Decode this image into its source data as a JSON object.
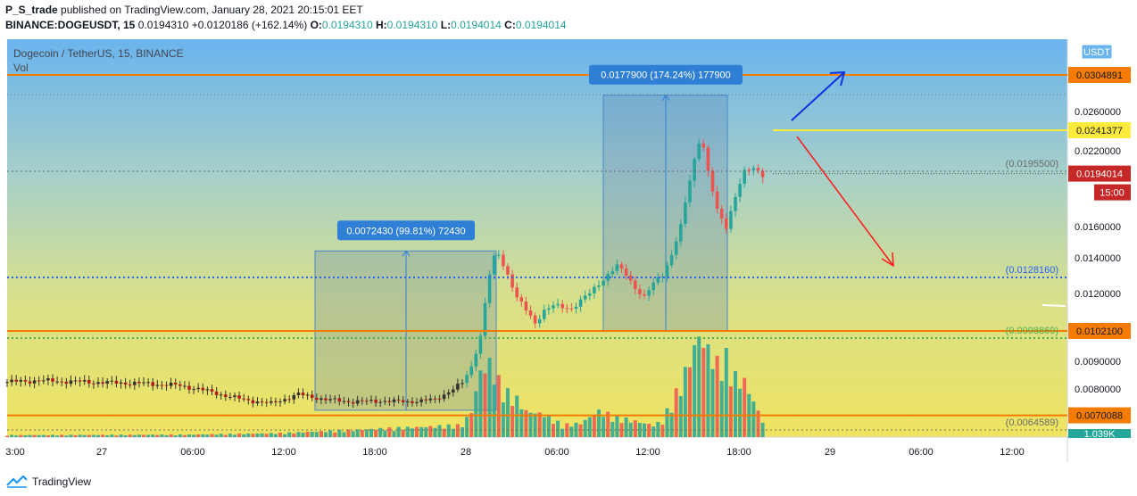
{
  "header": {
    "author": "P_S_trade",
    "published": "published on TradingView.com, January 28, 2021 20:15:01 EET",
    "symbol": "BINANCE:DOGEUSDT, 15",
    "last": "0.0194310",
    "change": "+0.0120186 (+162.14%)",
    "o_label": "O:",
    "o_val": "0.0194310",
    "h_label": "H:",
    "h_val": "0.0194310",
    "l_label": "L:",
    "l_val": "0.0194014",
    "c_label": "C:",
    "c_val": "0.0194014"
  },
  "legend": {
    "title": "Dogecoin / TetherUS, 15, BINANCE",
    "vol": "Vol"
  },
  "footer": {
    "brand": "TradingView"
  },
  "colors": {
    "up": "#26a69a",
    "down": "#ef5350",
    "orange": "#f57c00",
    "yellow": "#ffeb3b",
    "blue_dot": "#2962ff",
    "green_dot": "#4caf50"
  },
  "chart_data": {
    "type": "candlestick",
    "currency": "USDT",
    "ylim": [
      0.0062,
      0.0322
    ],
    "y_ticks": [
      "0.0260000",
      "0.0220000",
      "0.0160000",
      "0.0140000",
      "0.0120000",
      "0.0090000",
      "0.0080000"
    ],
    "x_ticks": [
      "3:00",
      "27",
      "06:00",
      "12:00",
      "18:00",
      "28",
      "06:00",
      "12:00",
      "18:00",
      "29",
      "06:00",
      "12:00"
    ],
    "horizontal_lines": [
      {
        "price": 0.0304891,
        "label": "0.0304891",
        "style": "orange"
      },
      {
        "price": 0.0241377,
        "label": "0.0241377",
        "style": "yellow"
      },
      {
        "price": 0.01021,
        "label": "0.0102100",
        "style": "orange"
      },
      {
        "price": 0.0070088,
        "label": "0.0070088",
        "style": "orange"
      }
    ],
    "dotted_levels": [
      {
        "price": 0.01955,
        "label": "(0.0195500)",
        "style": "gray"
      },
      {
        "price": 0.012816,
        "label": "(0.0128160)",
        "style": "blue"
      },
      {
        "price": 0.0098869,
        "label": "(0.0098869)",
        "style": "green"
      },
      {
        "price": 0.0064589,
        "label": "(0.0064589)",
        "style": "gray"
      }
    ],
    "current_price": {
      "label": "0.0194014",
      "countdown": "15:00"
    },
    "volume_label": "1.039K",
    "measurements": [
      {
        "text": "0.0072430 (99.81%) 72430",
        "from": 0.0072,
        "to": 0.01444
      },
      {
        "text": "0.0177900 (174.24%) 177900",
        "from": 0.01021,
        "to": 0.028
      }
    ],
    "price_path": [
      [
        0,
        0.00825
      ],
      [
        6,
        0.0083
      ],
      [
        12,
        0.00828
      ],
      [
        18,
        0.00825
      ],
      [
        24,
        0.00822
      ],
      [
        30,
        0.0082
      ],
      [
        34,
        0.00816
      ],
      [
        38,
        0.00812
      ],
      [
        42,
        0.008
      ],
      [
        48,
        0.00775
      ],
      [
        52,
        0.0076
      ],
      [
        58,
        0.00745
      ],
      [
        64,
        0.0078
      ],
      [
        70,
        0.0076
      ],
      [
        76,
        0.00752
      ],
      [
        82,
        0.00755
      ],
      [
        88,
        0.00752
      ],
      [
        94,
        0.0076
      ],
      [
        98,
        0.008
      ],
      [
        100,
        0.0082
      ],
      [
        102,
        0.0088
      ],
      [
        104,
        0.01
      ],
      [
        105,
        0.0115
      ],
      [
        106,
        0.013
      ],
      [
        107,
        0.014
      ],
      [
        108,
        0.0142
      ],
      [
        110,
        0.013
      ],
      [
        112,
        0.0118
      ],
      [
        114,
        0.0112
      ],
      [
        116,
        0.0106
      ],
      [
        118,
        0.0112
      ],
      [
        120,
        0.0114
      ],
      [
        124,
        0.0113
      ],
      [
        128,
        0.012
      ],
      [
        130,
        0.0125
      ],
      [
        134,
        0.0135
      ],
      [
        136,
        0.013
      ],
      [
        138,
        0.0123
      ],
      [
        140,
        0.0118
      ],
      [
        142,
        0.0125
      ],
      [
        144,
        0.013
      ],
      [
        146,
        0.0142
      ],
      [
        148,
        0.016
      ],
      [
        150,
        0.019
      ],
      [
        152,
        0.023
      ],
      [
        153,
        0.0224
      ],
      [
        154,
        0.0195
      ],
      [
        156,
        0.017
      ],
      [
        158,
        0.016
      ],
      [
        160,
        0.018
      ],
      [
        162,
        0.0195
      ],
      [
        164,
        0.0199
      ],
      [
        166,
        0.0194
      ]
    ],
    "volume_path": [
      [
        0,
        20
      ],
      [
        40,
        25
      ],
      [
        60,
        40
      ],
      [
        100,
        120
      ],
      [
        102,
        260
      ],
      [
        104,
        660
      ],
      [
        106,
        740
      ],
      [
        108,
        560
      ],
      [
        110,
        440
      ],
      [
        112,
        380
      ],
      [
        114,
        260
      ],
      [
        118,
        230
      ],
      [
        122,
        120
      ],
      [
        126,
        140
      ],
      [
        128,
        200
      ],
      [
        130,
        260
      ],
      [
        134,
        200
      ],
      [
        138,
        160
      ],
      [
        142,
        120
      ],
      [
        144,
        160
      ],
      [
        146,
        360
      ],
      [
        148,
        520
      ],
      [
        150,
        780
      ],
      [
        152,
        1020
      ],
      [
        154,
        880
      ],
      [
        156,
        740
      ],
      [
        158,
        800
      ],
      [
        160,
        600
      ],
      [
        162,
        560
      ],
      [
        164,
        360
      ],
      [
        166,
        160
      ]
    ]
  }
}
